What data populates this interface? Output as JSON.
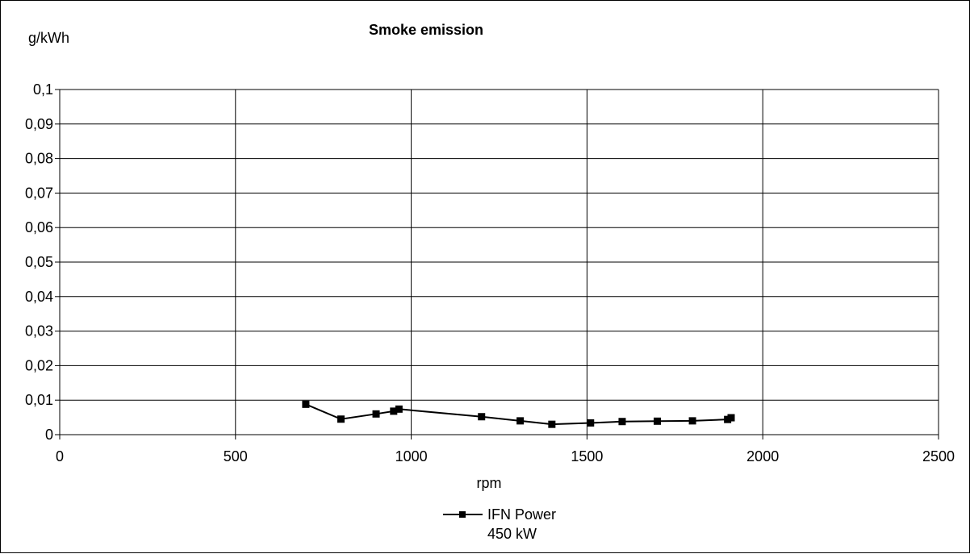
{
  "chart_data": {
    "type": "line",
    "title": "Smoke emission",
    "xlabel": "rpm",
    "ylabel": "g/kWh",
    "xlim": [
      0,
      2500
    ],
    "ylim": [
      0,
      0.1
    ],
    "x_ticks": [
      0,
      500,
      1000,
      1500,
      2000,
      2500
    ],
    "x_tick_labels": [
      "0",
      "500",
      "1000",
      "1500",
      "2000",
      "2500"
    ],
    "y_ticks": [
      0,
      0.01,
      0.02,
      0.03,
      0.04,
      0.05,
      0.06,
      0.07,
      0.08,
      0.09,
      0.1
    ],
    "y_tick_labels": [
      "0",
      "0,01",
      "0,02",
      "0,03",
      "0,04",
      "0,05",
      "0,06",
      "0,07",
      "0,08",
      "0,09",
      "0,1"
    ],
    "grid": true,
    "legend_position": "bottom",
    "series": [
      {
        "name": "IFN Power",
        "name_line2": "450 kW",
        "color": "#000000",
        "marker": "square",
        "x": [
          700,
          800,
          900,
          950,
          965,
          1200,
          1310,
          1400,
          1510,
          1600,
          1700,
          1800,
          1900,
          1910
        ],
        "y": [
          0.0088,
          0.0045,
          0.006,
          0.0068,
          0.0074,
          0.0052,
          0.004,
          0.003,
          0.0034,
          0.0038,
          0.0039,
          0.004,
          0.0044,
          0.0049
        ]
      }
    ]
  }
}
